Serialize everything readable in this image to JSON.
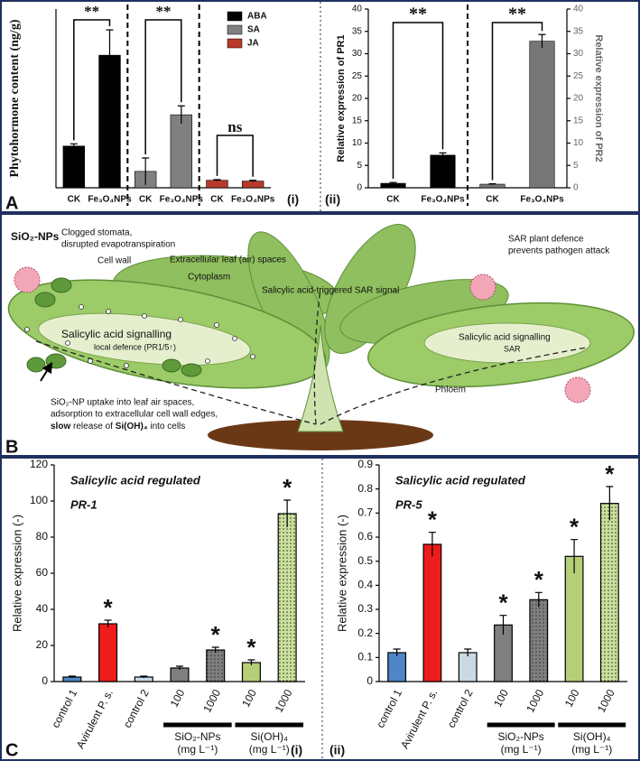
{
  "panel_labels": [
    "A",
    "B",
    "C"
  ],
  "chart_data": [
    {
      "type": "bar",
      "ylabel": "Phytohormone content (ng/g)",
      "panel": "(i)",
      "categories": [
        "CK",
        "Fe₃O₄NPs",
        "CK",
        "Fe₃O₄NPs",
        "CK",
        "Fe₃O₄NPs"
      ],
      "series": [
        {
          "name": "ABA",
          "color": "#000000",
          "values": [
            2.8,
            8.9,
            null,
            null,
            null,
            null
          ],
          "errors": [
            0.15,
            1.7,
            null,
            null,
            null,
            null
          ]
        },
        {
          "name": "SA",
          "color": "#808080",
          "values": [
            null,
            null,
            1.1,
            4.9,
            null,
            null
          ],
          "errors": [
            null,
            null,
            0.9,
            0.6,
            null,
            null
          ]
        },
        {
          "name": "JA",
          "color": "#b83a2a",
          "values": [
            null,
            null,
            null,
            null,
            0.5,
            0.45
          ],
          "errors": [
            null,
            null,
            null,
            null,
            0.05,
            0.05
          ]
        }
      ],
      "ylim": [
        0,
        12
      ],
      "comparisons": [
        "**",
        "**",
        "ns"
      ]
    },
    {
      "type": "bar",
      "ylabel": "Relative expression of PR1",
      "y2label": "Relative expression of PR2",
      "panel": "(ii)",
      "categories": [
        "CK",
        "Fe₃O₄NPs",
        "CK",
        "Fe₃O₄NPs"
      ],
      "series": [
        {
          "color": "#000000",
          "values": [
            1,
            7.3,
            null,
            null
          ],
          "errors": [
            0.2,
            0.5,
            null,
            null
          ]
        },
        {
          "color": "#777777",
          "axis": "y2",
          "values": [
            null,
            null,
            0.8,
            32.8
          ],
          "errors": [
            null,
            null,
            0.1,
            1.5
          ]
        }
      ],
      "ylim": [
        0,
        40
      ],
      "yticks": [
        0,
        5,
        10,
        15,
        20,
        25,
        30,
        35,
        40
      ],
      "y2lim": [
        0,
        40
      ],
      "y2ticks": [
        0,
        5,
        10,
        15,
        20,
        25,
        30,
        35,
        40
      ],
      "comparisons": [
        "**",
        "**"
      ]
    },
    {
      "type": "bar",
      "title": "Salicylic acid regulated",
      "subtitle": "PR-1",
      "ylabel": "Relative expression (-)",
      "panel": "(i)",
      "categories": [
        "control 1",
        "Avirulent P. s.",
        "control 2",
        "100",
        "1000",
        "100",
        "1000"
      ],
      "values": [
        2.5,
        32,
        2.5,
        7.5,
        17.5,
        10.5,
        93
      ],
      "errors": [
        0.5,
        2,
        0.5,
        1,
        1.5,
        1.5,
        7.5
      ],
      "colors": [
        "#4f86c6",
        "#ee1c1c",
        "#c9d9e6",
        "#7f7f7f",
        "#7f7f7f",
        "#b5cf78",
        "#c9e19a"
      ],
      "patterns": [
        null,
        null,
        null,
        null,
        "dotted",
        null,
        "dotted"
      ],
      "markers": [
        null,
        "*",
        null,
        null,
        "*",
        "*",
        "*"
      ],
      "groups": [
        {
          "name": "SiO₂-NPs",
          "unit": "(mg L⁻¹)"
        },
        {
          "name": "Si(OH)₄",
          "unit": "(mg L⁻¹)"
        }
      ],
      "ylim": [
        0,
        120
      ],
      "yticks": [
        0,
        20,
        40,
        60,
        80,
        100,
        120
      ]
    },
    {
      "type": "bar",
      "title": "Salicylic acid regulated",
      "subtitle": "PR-5",
      "ylabel": "Relative expression (-)",
      "panel": "(ii)",
      "categories": [
        "control 1",
        "Avirulent P. s.",
        "control 2",
        "100",
        "1000",
        "100",
        "1000"
      ],
      "values": [
        0.12,
        0.57,
        0.12,
        0.235,
        0.34,
        0.52,
        0.74
      ],
      "errors": [
        0.015,
        0.05,
        0.015,
        0.04,
        0.03,
        0.07,
        0.07
      ],
      "colors": [
        "#4f86c6",
        "#ee1c1c",
        "#c9d9e6",
        "#7f7f7f",
        "#7f7f7f",
        "#b5cf78",
        "#c9e19a"
      ],
      "patterns": [
        null,
        null,
        null,
        null,
        "dotted",
        null,
        "dotted"
      ],
      "markers": [
        null,
        "*",
        null,
        "*",
        "*",
        "*",
        "*"
      ],
      "groups": [
        {
          "name": "SiO₂-NPs",
          "unit": "(mg L⁻¹)"
        },
        {
          "name": "Si(OH)₄",
          "unit": "(mg L⁻¹)"
        }
      ],
      "ylim": [
        0,
        0.9
      ],
      "yticks": [
        0,
        0.1,
        0.2,
        0.3,
        0.4,
        0.5,
        0.6,
        0.7,
        0.8,
        0.9
      ]
    }
  ],
  "diagram": {
    "labels": [
      "SiO₂-NPs",
      "Clogged stomata,",
      "disrupted evapotranspiration",
      "Cell wall",
      "Extracellular leaf (air) spaces",
      "Cytoplasm",
      "Salicylic acid-triggered SAR signal",
      "SAR plant defence",
      "prevents pathogen attack",
      "Salicylic acid signalling",
      "local defence (PR1/5↑)",
      "Salicylic acid signalling",
      "SAR",
      "Phloem",
      "SiO₂-NP uptake into leaf air spaces,",
      "adsorption to extracellular cell wall edges,"
    ],
    "last_line": [
      {
        "text": "slow",
        "bold": true
      },
      {
        "text": " release of ",
        "bold": false
      },
      {
        "text": "Si(OH)₄",
        "bold": true
      },
      {
        "text": " into cells",
        "bold": false
      }
    ]
  }
}
